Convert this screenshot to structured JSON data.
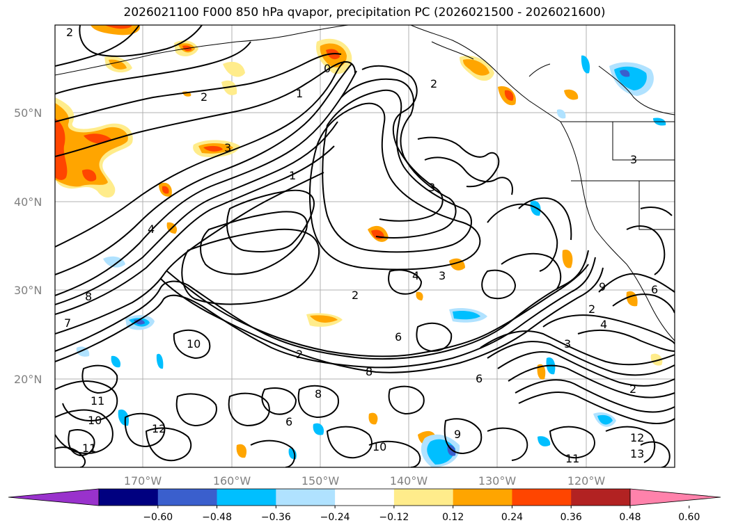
{
  "title": "2026021100 F000 850 hPa qvapor, precipitation PC (2026021500 - 2026021600)",
  "map": {
    "lat_labels": [
      "50°N",
      "40°N",
      "30°N",
      "20°N"
    ],
    "lon_labels": [
      "170°W",
      "160°W",
      "150°W",
      "140°W",
      "130°W",
      "120°W"
    ],
    "contour_labels": [
      "2",
      "1",
      "2",
      "3",
      "2",
      "3",
      "4",
      "0",
      "1",
      "3",
      "4",
      "3",
      "2",
      "8",
      "10",
      "6",
      "8",
      "6",
      "2",
      "11",
      "10",
      "12",
      "11",
      "8",
      "9",
      "10",
      "7",
      "6",
      "2",
      "11",
      "12",
      "13",
      "9",
      "4",
      "2",
      "3",
      "6"
    ]
  },
  "colorbar": {
    "colors": [
      "#9932cc",
      "#000080",
      "#3a5fcd",
      "#00bfff",
      "#b0e2ff",
      "#ffffff",
      "#ffec8b",
      "#ffa500",
      "#ff4500",
      "#b22222",
      "#ff82ab"
    ],
    "tick_labels": [
      "−0.60",
      "−0.48",
      "−0.36",
      "−0.24",
      "−0.12",
      "0.12",
      "0.24",
      "0.36",
      "0.48",
      "0.60"
    ]
  }
}
